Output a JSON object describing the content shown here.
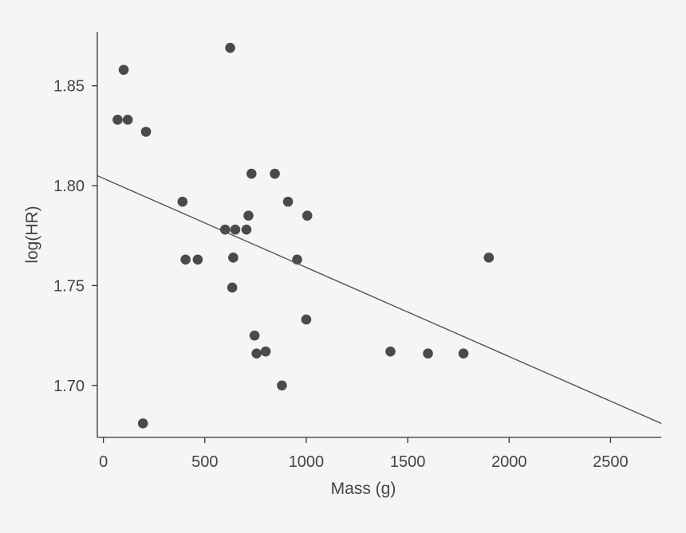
{
  "chart_data": {
    "type": "scatter",
    "xlabel": "Mass (g)",
    "ylabel": "log(HR)",
    "xlim": [
      -30,
      2750
    ],
    "ylim": [
      1.674,
      1.877
    ],
    "xticks": [
      0,
      500,
      1000,
      1500,
      2000,
      2500
    ],
    "yticks": [
      1.7,
      1.75,
      1.8,
      1.85
    ],
    "xtick_labels": [
      "0",
      "500",
      "1000",
      "1500",
      "2000",
      "2500"
    ],
    "ytick_labels": [
      "1.70",
      "1.75",
      "1.80",
      "1.85"
    ],
    "grid": false,
    "colors": {
      "points": "#4a4a4a",
      "line": "#555555",
      "axis": "#333333",
      "background": "#f5f5f5"
    },
    "points": [
      {
        "x": 70,
        "y": 1.833
      },
      {
        "x": 100,
        "y": 1.858
      },
      {
        "x": 120,
        "y": 1.833
      },
      {
        "x": 195,
        "y": 1.681
      },
      {
        "x": 210,
        "y": 1.827
      },
      {
        "x": 390,
        "y": 1.792
      },
      {
        "x": 405,
        "y": 1.763
      },
      {
        "x": 465,
        "y": 1.763
      },
      {
        "x": 600,
        "y": 1.778
      },
      {
        "x": 625,
        "y": 1.869
      },
      {
        "x": 635,
        "y": 1.749
      },
      {
        "x": 640,
        "y": 1.764
      },
      {
        "x": 650,
        "y": 1.778
      },
      {
        "x": 705,
        "y": 1.778
      },
      {
        "x": 715,
        "y": 1.785
      },
      {
        "x": 730,
        "y": 1.806
      },
      {
        "x": 745,
        "y": 1.725
      },
      {
        "x": 755,
        "y": 1.716
      },
      {
        "x": 800,
        "y": 1.717
      },
      {
        "x": 845,
        "y": 1.806
      },
      {
        "x": 880,
        "y": 1.7
      },
      {
        "x": 910,
        "y": 1.792
      },
      {
        "x": 955,
        "y": 1.763
      },
      {
        "x": 1000,
        "y": 1.733
      },
      {
        "x": 1005,
        "y": 1.785
      },
      {
        "x": 1415,
        "y": 1.717
      },
      {
        "x": 1600,
        "y": 1.716
      },
      {
        "x": 1775,
        "y": 1.716
      },
      {
        "x": 1900,
        "y": 1.764
      }
    ],
    "fit_line": {
      "x": [
        -30,
        2750
      ],
      "y": [
        1.805,
        1.681
      ]
    }
  }
}
